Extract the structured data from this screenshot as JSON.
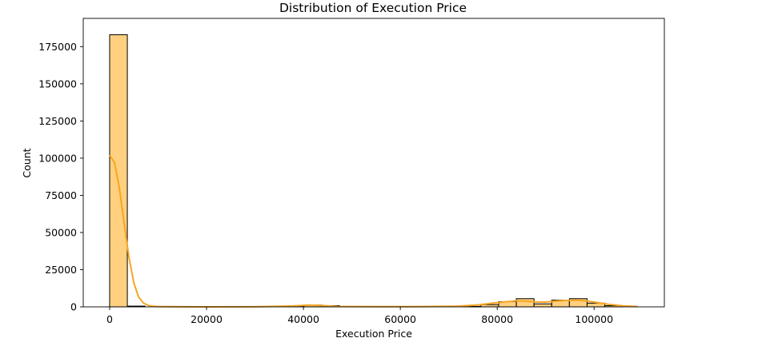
{
  "chart_data": {
    "type": "histogram",
    "title": "Distribution of Execution Price",
    "xlabel": "Execution Price",
    "ylabel": "Count",
    "xlim": [
      -5450,
      114500
    ],
    "ylim": [
      0,
      194000
    ],
    "xticks": [
      0,
      20000,
      40000,
      60000,
      80000,
      100000
    ],
    "yticks": [
      0,
      25000,
      50000,
      75000,
      100000,
      125000,
      150000,
      175000
    ],
    "bin_start": 0,
    "bin_width": 3650,
    "counts": [
      183000,
      500,
      0,
      0,
      0,
      0,
      0,
      0,
      0,
      0,
      300,
      1200,
      800,
      0,
      0,
      0,
      0,
      0,
      0,
      0,
      300,
      1500,
      3500,
      5500,
      2000,
      4500,
      5500,
      2500,
      800,
      0
    ],
    "kde": {
      "x": [
        0,
        1000,
        2000,
        3000,
        4000,
        5000,
        6000,
        7000,
        8000,
        9000,
        10000,
        12000,
        15000,
        20000,
        30000,
        38000,
        41000,
        44000,
        47000,
        55000,
        65000,
        72000,
        76000,
        79000,
        82000,
        84000,
        86000,
        88000,
        90000,
        92000,
        94000,
        96000,
        98000,
        100000,
        103000,
        106000,
        109000
      ],
      "y": [
        102000,
        97000,
        80000,
        56000,
        33000,
        16000,
        6500,
        2500,
        900,
        400,
        200,
        100,
        50,
        20,
        60,
        600,
        1200,
        900,
        300,
        100,
        200,
        500,
        1300,
        2500,
        3500,
        4000,
        3800,
        3300,
        3200,
        3800,
        4300,
        4500,
        4100,
        3200,
        1700,
        700,
        200
      ]
    },
    "colors": {
      "bar_fill": "#ffd07f",
      "bar_edge": "#000000",
      "kde_line": "#f5a623"
    },
    "grid": false,
    "legend": "none"
  }
}
